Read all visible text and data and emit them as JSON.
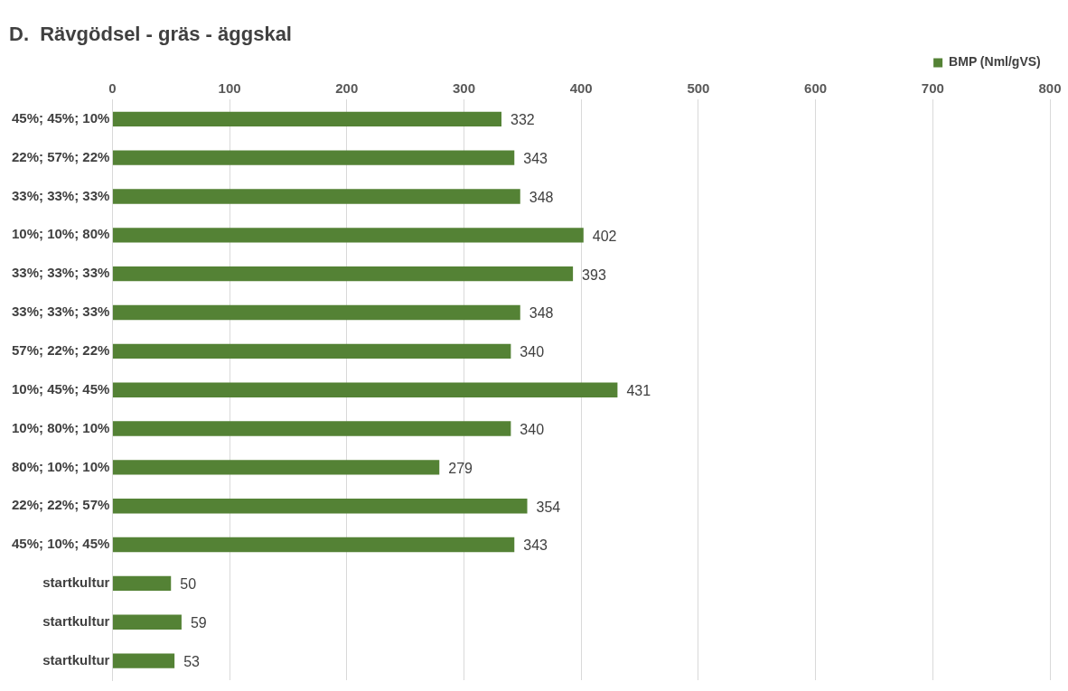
{
  "chart_data": {
    "type": "bar",
    "orientation": "horizontal",
    "title": "D.  Rävgödsel - gräs - äggskal",
    "categories": [
      "45%; 45%; 10%",
      "22%; 57%; 22%",
      "33%; 33%; 33%",
      "10%; 10%; 80%",
      "33%; 33%; 33%",
      "33%; 33%; 33%",
      "57%; 22%; 22%",
      "10%; 45%; 45%",
      "10%; 80%; 10%",
      "80%; 10%; 10%",
      "22%; 22%; 57%",
      "45%; 10%; 45%",
      "startkultur",
      "startkultur",
      "startkultur"
    ],
    "series": [
      {
        "name": "BMP (Nml/gVS)",
        "color": "#548235",
        "values": [
          332,
          343,
          348,
          402,
          393,
          348,
          340,
          431,
          340,
          279,
          354,
          343,
          50,
          59,
          53
        ]
      }
    ],
    "xlim": [
      0,
      800
    ],
    "xticks": [
      0,
      100,
      200,
      300,
      400,
      500,
      600,
      700,
      800
    ],
    "grid": "x",
    "legend": "top right",
    "data_labels": true
  }
}
